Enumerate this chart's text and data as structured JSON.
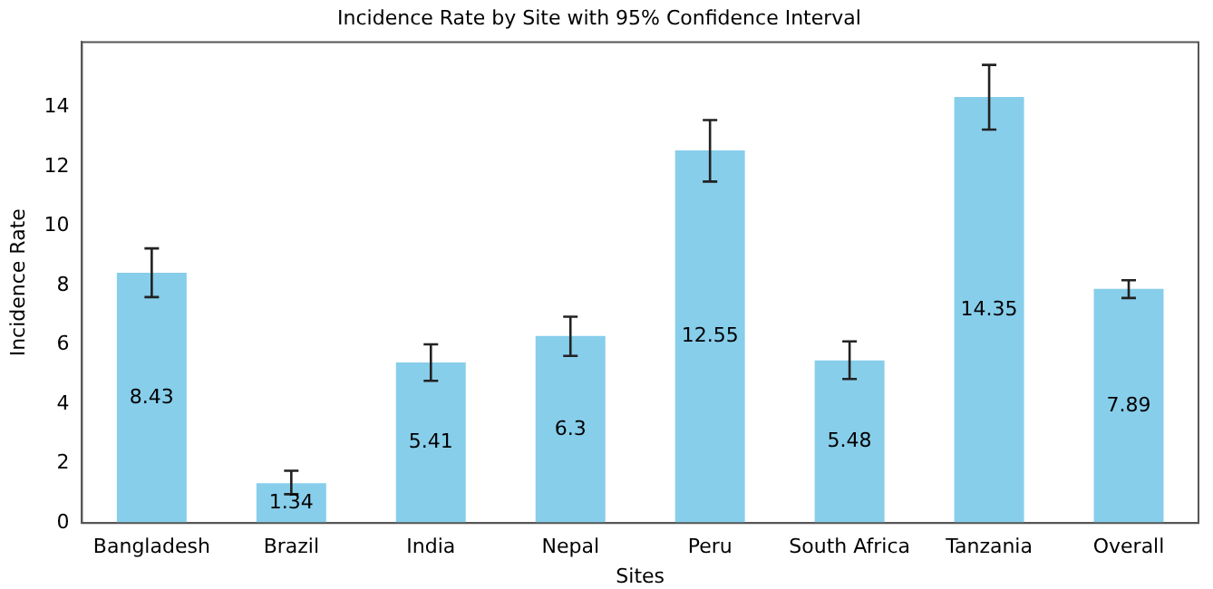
{
  "chart_data": {
    "type": "bar",
    "title": "Incidence Rate by Site with 95% Confidence Interval",
    "xlabel": "Sites",
    "ylabel": "Incidence Rate",
    "categories": [
      "Bangladesh",
      "Brazil",
      "India",
      "Nepal",
      "Peru",
      "South Africa",
      "Tanzania",
      "Overall"
    ],
    "values": [
      8.43,
      1.34,
      5.41,
      6.3,
      12.55,
      5.48,
      14.35,
      7.89
    ],
    "errors": [
      [
        7.61,
        9.25
      ],
      [
        0.97,
        1.76
      ],
      [
        4.79,
        6.02
      ],
      [
        5.63,
        6.95
      ],
      [
        11.5,
        13.57
      ],
      [
        4.85,
        6.12
      ],
      [
        13.25,
        15.43
      ],
      [
        7.58,
        8.18
      ]
    ],
    "color": "#87ceeb",
    "ylim": [
      0,
      16.2
    ],
    "yticks": [
      0,
      2,
      4,
      6,
      8,
      10,
      12,
      14
    ],
    "grid": false,
    "legend": false,
    "data_labels": true
  }
}
